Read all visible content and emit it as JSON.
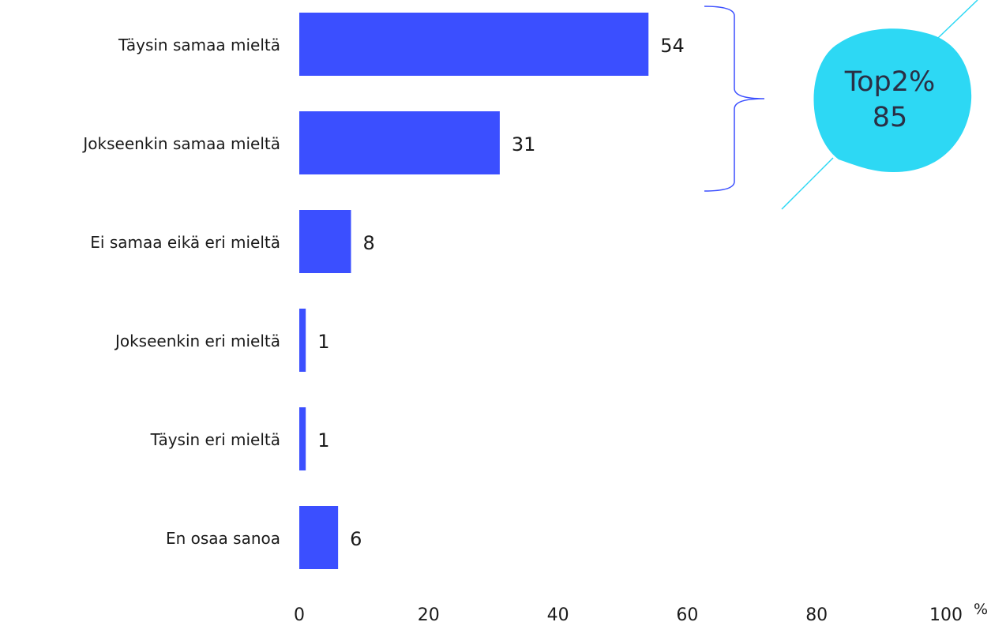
{
  "chart_data": {
    "type": "bar",
    "orientation": "horizontal",
    "categories": [
      "Täysin samaa mieltä",
      "Jokseenkin samaa mieltä",
      "Ei samaa eikä eri mieltä",
      "Jokseenkin eri mieltä",
      "Täysin eri mieltä",
      "En osaa sanoa"
    ],
    "values": [
      54,
      31,
      8,
      1,
      1,
      6
    ],
    "xlim": [
      0,
      100
    ],
    "x_ticks": [
      0,
      20,
      40,
      60,
      80,
      100
    ],
    "x_unit": "%",
    "grid": false,
    "legend": "none",
    "annotation": {
      "label": "Top2%",
      "value": 85,
      "brace_covers": [
        "Täysin samaa mieltä",
        "Jokseenkin samaa mieltä"
      ]
    }
  },
  "colors": {
    "bar": "#3b4fff",
    "bubble": "#2dd8f4",
    "brace": "#3b4fff",
    "text": "#1a1a1a",
    "bubble_text": "#2a2f45"
  }
}
